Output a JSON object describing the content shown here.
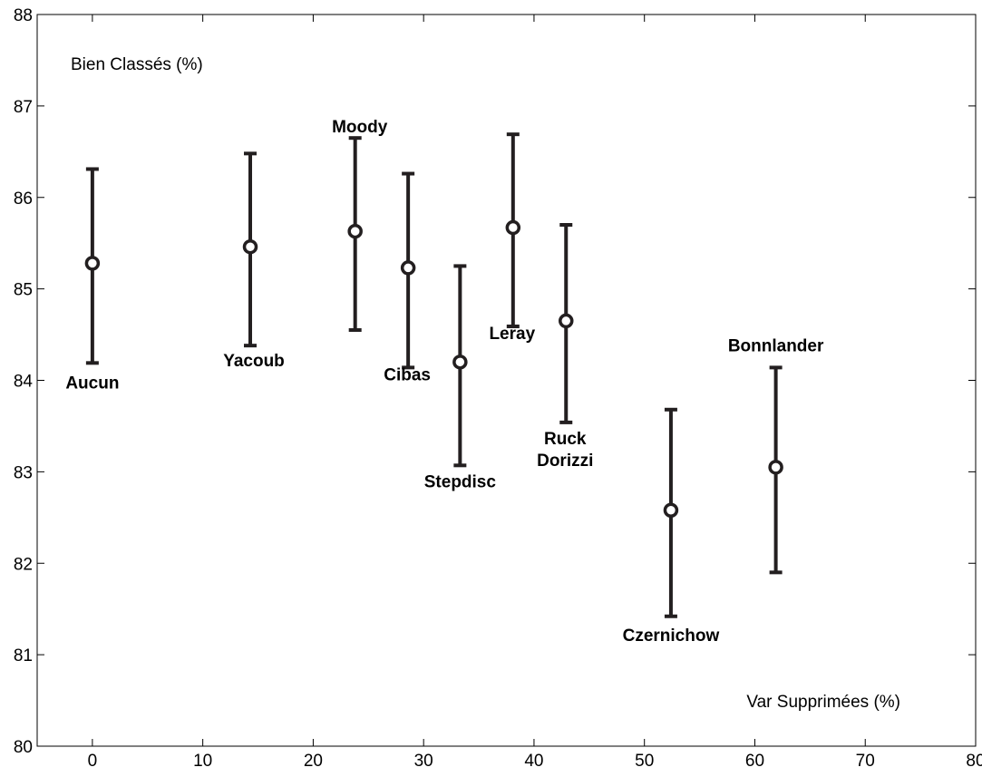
{
  "chart_data": {
    "type": "scatter",
    "subtype": "errorbar",
    "title": "",
    "ylabel": "Bien Classés (%)",
    "xlabel": "Var Supprimées (%)",
    "xlim": [
      -5,
      80
    ],
    "ylim": [
      80,
      88
    ],
    "xticks": [
      0,
      10,
      20,
      30,
      40,
      50,
      60,
      70,
      80
    ],
    "yticks": [
      80,
      81,
      82,
      83,
      84,
      85,
      86,
      87,
      88
    ],
    "grid": false,
    "legend": "none",
    "color": "#231f20",
    "points": [
      {
        "label": "Aucun",
        "label_lines": [
          "Aucun"
        ],
        "x": 0,
        "y": 85.28,
        "lower": 84.19,
        "upper": 86.31
      },
      {
        "label": "Yacoub",
        "label_lines": [
          "Yacoub"
        ],
        "x": 14.3,
        "y": 85.46,
        "lower": 84.38,
        "upper": 86.48
      },
      {
        "label": "Moody",
        "label_lines": [
          "Moody"
        ],
        "x": 23.8,
        "y": 85.63,
        "lower": 84.55,
        "upper": 86.65
      },
      {
        "label": "Cibas",
        "label_lines": [
          "Cibas"
        ],
        "x": 28.6,
        "y": 85.23,
        "lower": 84.14,
        "upper": 86.26
      },
      {
        "label": "Stepdisc",
        "label_lines": [
          "Stepdisc"
        ],
        "x": 33.3,
        "y": 84.2,
        "lower": 83.07,
        "upper": 85.25
      },
      {
        "label": "Leray",
        "label_lines": [
          "Leray"
        ],
        "x": 38.1,
        "y": 85.67,
        "lower": 84.59,
        "upper": 86.69
      },
      {
        "label": "Ruck Dorizzi",
        "label_lines": [
          "Ruck",
          "Dorizzi"
        ],
        "x": 42.9,
        "y": 84.65,
        "lower": 83.54,
        "upper": 85.7
      },
      {
        "label": "Czernichow",
        "label_lines": [
          "Czernichow"
        ],
        "x": 52.4,
        "y": 82.58,
        "lower": 81.42,
        "upper": 83.68
      },
      {
        "label": "Bonnlander",
        "label_lines": [
          "Bonnlander"
        ],
        "x": 61.9,
        "y": 83.05,
        "lower": 81.9,
        "upper": 84.14
      }
    ]
  }
}
